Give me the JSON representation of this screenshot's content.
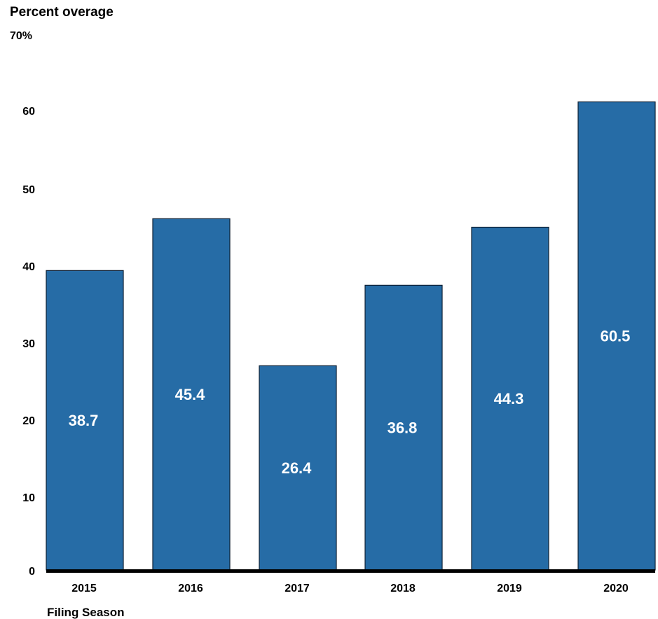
{
  "chart_data": {
    "type": "bar",
    "title": "",
    "ylabel": "Percent overage",
    "xlabel": "Filing Season",
    "categories": [
      "2015",
      "2016",
      "2017",
      "2018",
      "2019",
      "2020"
    ],
    "values": [
      38.7,
      45.4,
      26.4,
      36.8,
      44.3,
      60.5
    ],
    "data_labels": [
      "38.7",
      "45.4",
      "26.4",
      "36.8",
      "44.3",
      "60.5"
    ],
    "ylim": [
      0,
      70
    ],
    "yticks": [
      0,
      10,
      20,
      30,
      40,
      50,
      60,
      70
    ],
    "ytick_labels": [
      "0",
      "10",
      "20",
      "30",
      "40",
      "50",
      "60",
      "70%"
    ],
    "grid": false,
    "legend": "none",
    "colors": {
      "bar_fill": "#266ca6",
      "bar_stroke": "#0d1f33",
      "baseline": "#000000",
      "label_text": "#ffffff",
      "axis_text": "#000000"
    }
  }
}
